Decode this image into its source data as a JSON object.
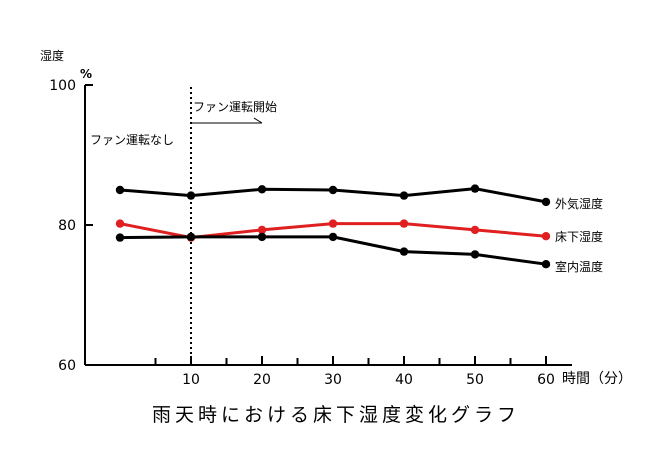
{
  "chart_data": {
    "type": "line",
    "title": "雨天時における床下湿度変化グラフ",
    "ylabel": "湿度",
    "yunit": "%",
    "xlabel": "時間（分）",
    "xlim": [
      -5,
      65
    ],
    "ylim": [
      60,
      100
    ],
    "yticks": [
      "60",
      "80",
      "100"
    ],
    "xticks": [
      "10",
      "20",
      "30",
      "40",
      "50",
      "60"
    ],
    "x": [
      0,
      10,
      20,
      30,
      40,
      50,
      60
    ],
    "grid": false,
    "legend": "inline-right",
    "colors": {
      "outside": "#000000",
      "underfloor": "#e02020",
      "indoor": "#000000"
    },
    "series": [
      {
        "name": "外気湿度",
        "values": [
          85,
          84.2,
          85.1,
          85,
          84.2,
          85.2,
          83.3
        ]
      },
      {
        "name": "床下湿度",
        "values": [
          80.2,
          78.2,
          79.3,
          80.2,
          80.2,
          79.3,
          78.4
        ]
      },
      {
        "name": "室内温度",
        "values": [
          78.2,
          78.3,
          78.3,
          78.3,
          76.2,
          75.8,
          74.4
        ]
      }
    ],
    "annotations": {
      "before": "ファン運転なし",
      "after": "ファン運転開始",
      "marker_x": 10
    }
  }
}
